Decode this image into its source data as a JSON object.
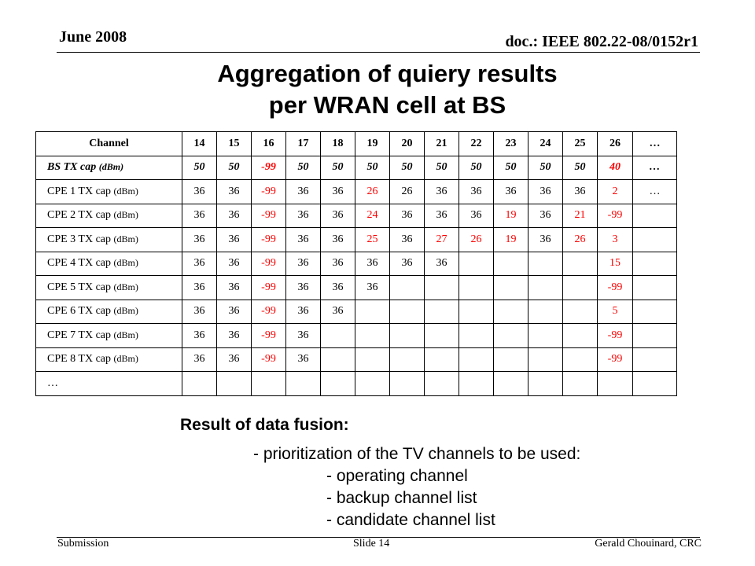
{
  "header": {
    "date": "June 2008",
    "doc": "doc.: IEEE 802.22-08/0152r1"
  },
  "title": {
    "line1": "Aggregation of quiery results",
    "line2": "per WRAN cell at BS"
  },
  "colors": {
    "text": "#000000",
    "highlight": "#ff0000"
  },
  "table": {
    "header_label": "Channel",
    "channels": [
      "14",
      "15",
      "16",
      "17",
      "18",
      "19",
      "20",
      "21",
      "22",
      "23",
      "24",
      "25",
      "26",
      "…"
    ],
    "rows": [
      {
        "label": "BS TX cap",
        "unit": "(dBm)",
        "style": "bs",
        "cells": [
          {
            "v": "50"
          },
          {
            "v": "50"
          },
          {
            "v": "-99",
            "red": true
          },
          {
            "v": "50"
          },
          {
            "v": "50"
          },
          {
            "v": "50"
          },
          {
            "v": "50"
          },
          {
            "v": "50"
          },
          {
            "v": "50"
          },
          {
            "v": "50"
          },
          {
            "v": "50"
          },
          {
            "v": "50"
          },
          {
            "v": "40",
            "red": true
          },
          {
            "v": "…"
          }
        ]
      },
      {
        "label": "CPE 1 TX cap",
        "unit": "(dBm)",
        "cells": [
          {
            "v": "36"
          },
          {
            "v": "36"
          },
          {
            "v": "-99",
            "red": true
          },
          {
            "v": "36"
          },
          {
            "v": "36"
          },
          {
            "v": "26",
            "red": true
          },
          {
            "v": "26"
          },
          {
            "v": "36"
          },
          {
            "v": "36"
          },
          {
            "v": "36"
          },
          {
            "v": "36"
          },
          {
            "v": "36"
          },
          {
            "v": "2",
            "red": true
          },
          {
            "v": "…"
          }
        ]
      },
      {
        "label": "CPE 2 TX cap",
        "unit": "(dBm)",
        "cells": [
          {
            "v": "36"
          },
          {
            "v": "36"
          },
          {
            "v": "-99",
            "red": true
          },
          {
            "v": "36"
          },
          {
            "v": "36"
          },
          {
            "v": "24",
            "red": true
          },
          {
            "v": "36"
          },
          {
            "v": "36"
          },
          {
            "v": "36"
          },
          {
            "v": "19",
            "red": true
          },
          {
            "v": "36"
          },
          {
            "v": "21",
            "red": true
          },
          {
            "v": "-99",
            "red": true
          },
          {
            "v": ""
          }
        ]
      },
      {
        "label": "CPE 3 TX cap",
        "unit": "(dBm)",
        "cells": [
          {
            "v": "36"
          },
          {
            "v": "36"
          },
          {
            "v": "-99",
            "red": true
          },
          {
            "v": "36"
          },
          {
            "v": "36"
          },
          {
            "v": "25",
            "red": true
          },
          {
            "v": "36"
          },
          {
            "v": "27",
            "red": true
          },
          {
            "v": "26",
            "red": true
          },
          {
            "v": "19",
            "red": true
          },
          {
            "v": "36"
          },
          {
            "v": "26",
            "red": true
          },
          {
            "v": "3",
            "red": true
          },
          {
            "v": ""
          }
        ]
      },
      {
        "label": "CPE 4 TX cap",
        "unit": "(dBm)",
        "cells": [
          {
            "v": "36"
          },
          {
            "v": "36"
          },
          {
            "v": "-99",
            "red": true
          },
          {
            "v": "36"
          },
          {
            "v": "36"
          },
          {
            "v": "36"
          },
          {
            "v": "36"
          },
          {
            "v": "36"
          },
          {
            "v": ""
          },
          {
            "v": ""
          },
          {
            "v": ""
          },
          {
            "v": ""
          },
          {
            "v": "15",
            "red": true
          },
          {
            "v": ""
          }
        ]
      },
      {
        "label": "CPE 5 TX cap",
        "unit": "(dBm)",
        "cells": [
          {
            "v": "36"
          },
          {
            "v": "36"
          },
          {
            "v": "-99",
            "red": true
          },
          {
            "v": "36"
          },
          {
            "v": "36"
          },
          {
            "v": "36"
          },
          {
            "v": ""
          },
          {
            "v": ""
          },
          {
            "v": ""
          },
          {
            "v": ""
          },
          {
            "v": ""
          },
          {
            "v": ""
          },
          {
            "v": "-99",
            "red": true
          },
          {
            "v": ""
          }
        ]
      },
      {
        "label": "CPE 6 TX cap",
        "unit": "(dBm)",
        "cells": [
          {
            "v": "36"
          },
          {
            "v": "36"
          },
          {
            "v": "-99",
            "red": true
          },
          {
            "v": "36"
          },
          {
            "v": "36"
          },
          {
            "v": ""
          },
          {
            "v": ""
          },
          {
            "v": ""
          },
          {
            "v": ""
          },
          {
            "v": ""
          },
          {
            "v": ""
          },
          {
            "v": ""
          },
          {
            "v": "5",
            "red": true
          },
          {
            "v": ""
          }
        ]
      },
      {
        "label": "CPE 7 TX cap",
        "unit": "(dBm)",
        "cells": [
          {
            "v": "36"
          },
          {
            "v": "36"
          },
          {
            "v": "-99",
            "red": true
          },
          {
            "v": "36"
          },
          {
            "v": ""
          },
          {
            "v": ""
          },
          {
            "v": ""
          },
          {
            "v": ""
          },
          {
            "v": ""
          },
          {
            "v": ""
          },
          {
            "v": ""
          },
          {
            "v": ""
          },
          {
            "v": "-99",
            "red": true
          },
          {
            "v": ""
          }
        ]
      },
      {
        "label": "CPE 8 TX cap",
        "unit": "(dBm)",
        "cells": [
          {
            "v": "36"
          },
          {
            "v": "36"
          },
          {
            "v": "-99",
            "red": true
          },
          {
            "v": "36"
          },
          {
            "v": ""
          },
          {
            "v": ""
          },
          {
            "v": ""
          },
          {
            "v": ""
          },
          {
            "v": ""
          },
          {
            "v": ""
          },
          {
            "v": ""
          },
          {
            "v": ""
          },
          {
            "v": "-99",
            "red": true
          },
          {
            "v": ""
          }
        ]
      },
      {
        "label": "…",
        "unit": "",
        "cells": [
          {
            "v": ""
          },
          {
            "v": ""
          },
          {
            "v": ""
          },
          {
            "v": ""
          },
          {
            "v": ""
          },
          {
            "v": ""
          },
          {
            "v": ""
          },
          {
            "v": ""
          },
          {
            "v": ""
          },
          {
            "v": ""
          },
          {
            "v": ""
          },
          {
            "v": ""
          },
          {
            "v": ""
          },
          {
            "v": ""
          }
        ]
      }
    ]
  },
  "fusion": {
    "heading": "Result of data fusion:",
    "lines": [
      "- prioritization of the TV channels to be used:",
      "- operating channel",
      "- backup channel list",
      "- candidate channel list"
    ]
  },
  "footer": {
    "left": "Submission",
    "center": "Slide 14",
    "right": "Gerald Chouinard, CRC"
  }
}
